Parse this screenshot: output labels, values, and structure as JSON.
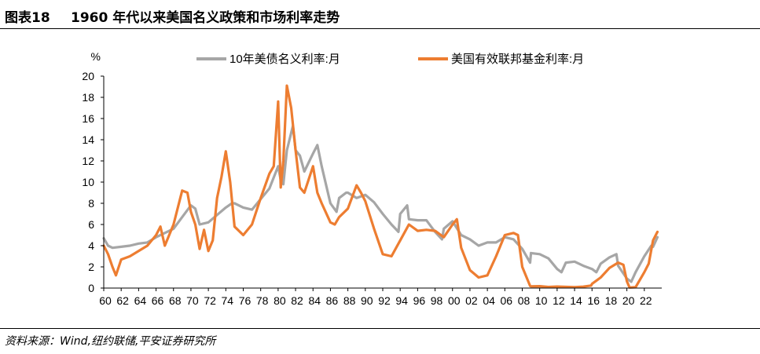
{
  "header": {
    "label": "图表18",
    "title": "1960 年代以来美国名义政策和市场利率走势"
  },
  "footer": {
    "source": "资料来源：Wind,纽约联储,平安证券研究所"
  },
  "chart_data": {
    "type": "line",
    "title": "",
    "ylabel": "%",
    "xlabel": "",
    "ylim": [
      0,
      20
    ],
    "xlim": [
      1960,
      2024
    ],
    "yticks": [
      0,
      2,
      4,
      6,
      8,
      10,
      12,
      14,
      16,
      18,
      20
    ],
    "xticks": [
      "60",
      "62",
      "64",
      "66",
      "68",
      "70",
      "72",
      "74",
      "76",
      "78",
      "80",
      "82",
      "84",
      "86",
      "88",
      "90",
      "92",
      "94",
      "96",
      "98",
      "00",
      "02",
      "04",
      "06",
      "08",
      "10",
      "12",
      "14",
      "16",
      "18",
      "20",
      "22"
    ],
    "grid": false,
    "legend_position": "top",
    "series": [
      {
        "name": "10年美债名义利率:月",
        "color": "#a6a6a6",
        "x": [
          1960,
          1960.5,
          1961,
          1962,
          1963,
          1964,
          1965,
          1966,
          1967,
          1968,
          1969,
          1970,
          1970.5,
          1971,
          1972,
          1973,
          1974,
          1974.7,
          1975,
          1976,
          1977,
          1978,
          1979,
          1980,
          1980.3,
          1980.6,
          1981,
          1981.7,
          1982,
          1982.5,
          1983,
          1984,
          1984.5,
          1985,
          1986,
          1986.7,
          1987,
          1987.8,
          1988,
          1989,
          1990,
          1991,
          1992,
          1993,
          1993.8,
          1994,
          1994.8,
          1995,
          1996,
          1997,
          1998,
          1998.8,
          1999,
          2000,
          2001,
          2002,
          2003,
          2004,
          2005,
          2006,
          2007,
          2008,
          2008.9,
          2009,
          2010,
          2011,
          2012,
          2012.5,
          2013,
          2014,
          2015,
          2016,
          2016.5,
          2017,
          2018,
          2018.8,
          2019,
          2020,
          2020.5,
          2021,
          2022,
          2022.8,
          2023,
          2023.5
        ],
        "y": [
          4.7,
          4.0,
          3.8,
          3.9,
          4.0,
          4.2,
          4.3,
          4.8,
          5.2,
          5.6,
          6.7,
          7.8,
          7.5,
          6.0,
          6.2,
          6.9,
          7.6,
          8.0,
          8.0,
          7.6,
          7.4,
          8.4,
          9.4,
          11.5,
          10.2,
          9.8,
          13.0,
          15.3,
          13.0,
          12.5,
          11.0,
          12.7,
          13.5,
          11.5,
          8.0,
          7.2,
          8.5,
          9.0,
          9.0,
          8.5,
          8.8,
          8.1,
          7.0,
          6.0,
          5.3,
          7.0,
          7.8,
          6.5,
          6.4,
          6.4,
          5.3,
          4.6,
          5.6,
          6.3,
          5.0,
          4.6,
          4.0,
          4.3,
          4.3,
          4.8,
          4.6,
          3.7,
          2.4,
          3.3,
          3.2,
          2.8,
          1.8,
          1.5,
          2.4,
          2.5,
          2.1,
          1.8,
          1.5,
          2.3,
          2.9,
          3.2,
          2.1,
          0.9,
          0.6,
          1.5,
          3.0,
          4.0,
          3.9,
          4.8
        ]
      },
      {
        "name": "美国有效联邦基金利率:月",
        "color": "#ed7d31",
        "x": [
          1960,
          1960.5,
          1961,
          1961.4,
          1962,
          1963,
          1964,
          1965,
          1966,
          1966.5,
          1967,
          1968,
          1969,
          1969.6,
          1970,
          1970.5,
          1971,
          1971.5,
          1972,
          1972.5,
          1973,
          1973.5,
          1974,
          1974.5,
          1975,
          1976,
          1977,
          1978,
          1979,
          1979.5,
          1980,
          1980.3,
          1980.6,
          1981,
          1981.5,
          1982,
          1982.5,
          1983,
          1984,
          1984.5,
          1985,
          1986,
          1986.5,
          1987,
          1988,
          1989,
          1989.5,
          1990,
          1991,
          1992,
          1993,
          1994,
          1995,
          1996,
          1997,
          1998,
          1999,
          2000,
          2000.5,
          2001,
          2002,
          2003,
          2004,
          2005,
          2006,
          2007,
          2007.5,
          2008,
          2008.9,
          2009,
          2010,
          2011,
          2012,
          2013,
          2014,
          2015,
          2015.9,
          2016,
          2017,
          2018,
          2019,
          2019.6,
          2020,
          2020.3,
          2021,
          2022,
          2022.5,
          2023,
          2023.5
        ],
        "y": [
          4.0,
          3.2,
          2.0,
          1.2,
          2.7,
          3.0,
          3.5,
          4.0,
          5.0,
          5.8,
          4.0,
          6.0,
          9.2,
          9.0,
          7.2,
          6.0,
          3.7,
          5.5,
          3.5,
          4.5,
          8.5,
          10.5,
          12.9,
          10.0,
          5.8,
          5.0,
          6.0,
          8.5,
          10.8,
          11.5,
          17.6,
          9.5,
          12.0,
          19.1,
          17.0,
          13.0,
          9.5,
          9.0,
          11.5,
          9.0,
          8.0,
          6.2,
          6.0,
          6.7,
          7.5,
          9.7,
          9.0,
          8.2,
          5.6,
          3.2,
          3.0,
          4.5,
          6.0,
          5.4,
          5.5,
          5.4,
          4.8,
          6.0,
          6.5,
          3.8,
          1.7,
          1.0,
          1.2,
          3.0,
          5.0,
          5.2,
          5.0,
          2.0,
          0.2,
          0.16,
          0.18,
          0.1,
          0.14,
          0.11,
          0.09,
          0.13,
          0.24,
          0.4,
          1.0,
          1.9,
          2.4,
          2.2,
          0.65,
          0.05,
          0.08,
          1.5,
          2.3,
          4.5,
          5.3
        ]
      }
    ]
  }
}
